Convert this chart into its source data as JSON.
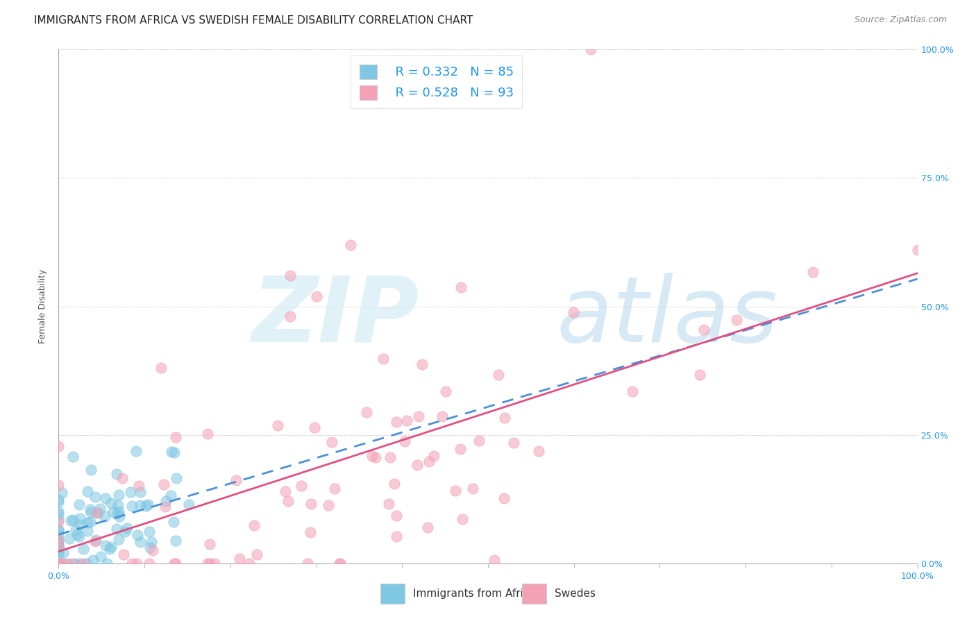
{
  "title": "IMMIGRANTS FROM AFRICA VS SWEDISH FEMALE DISABILITY CORRELATION CHART",
  "source": "Source: ZipAtlas.com",
  "ylabel": "Female Disability",
  "ytick_labels": [
    "0.0%",
    "25.0%",
    "50.0%",
    "75.0%",
    "100.0%"
  ],
  "ytick_values": [
    0.0,
    0.25,
    0.5,
    0.75,
    1.0
  ],
  "legend_label1": "Immigrants from Africa",
  "legend_label2": "Swedes",
  "legend_r1": "R = 0.332",
  "legend_n1": "N = 85",
  "legend_r2": "R = 0.528",
  "legend_n2": "N = 93",
  "color_blue": "#7ec8e3",
  "color_pink": "#f4a0b5",
  "color_blue_line": "#4a90d9",
  "color_pink_line": "#e05080",
  "background_color": "#ffffff",
  "seed": 42,
  "n_blue": 85,
  "n_pink": 93,
  "blue_r": 0.332,
  "pink_r": 0.528,
  "title_fontsize": 11,
  "axis_label_fontsize": 9,
  "tick_fontsize": 9,
  "legend_fontsize": 13,
  "source_fontsize": 9
}
